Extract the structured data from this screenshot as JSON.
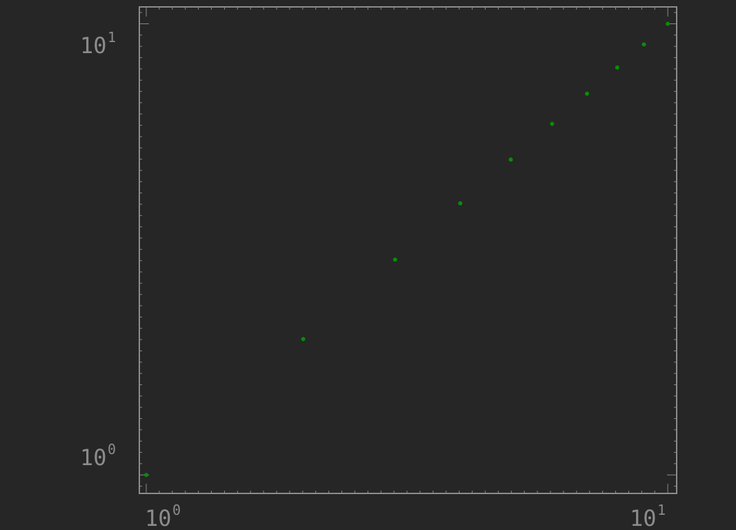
{
  "chart_data": {
    "type": "scatter",
    "title": "",
    "xlabel": "",
    "ylabel": "",
    "xscale": "log",
    "yscale": "log",
    "xlim": [
      0.97,
      10.4
    ],
    "ylim": [
      0.91,
      10.9
    ],
    "grid": false,
    "legend": "none",
    "marker_color": "#0a8c0a",
    "axis_color": "#8c8c8c",
    "background": "#262626",
    "series": [
      {
        "x": [
          1,
          2,
          3,
          4,
          5,
          6,
          7,
          8,
          9,
          10
        ],
        "y": [
          1,
          2,
          3,
          4,
          5,
          6,
          7,
          8,
          9,
          10
        ]
      }
    ],
    "x_ticks": [
      {
        "base": "10",
        "exp": "0",
        "value": 1
      },
      {
        "base": "10",
        "exp": "1",
        "value": 10
      }
    ],
    "y_ticks": [
      {
        "base": "10",
        "exp": "0",
        "value": 1
      },
      {
        "base": "10",
        "exp": "1",
        "value": 10
      }
    ]
  }
}
